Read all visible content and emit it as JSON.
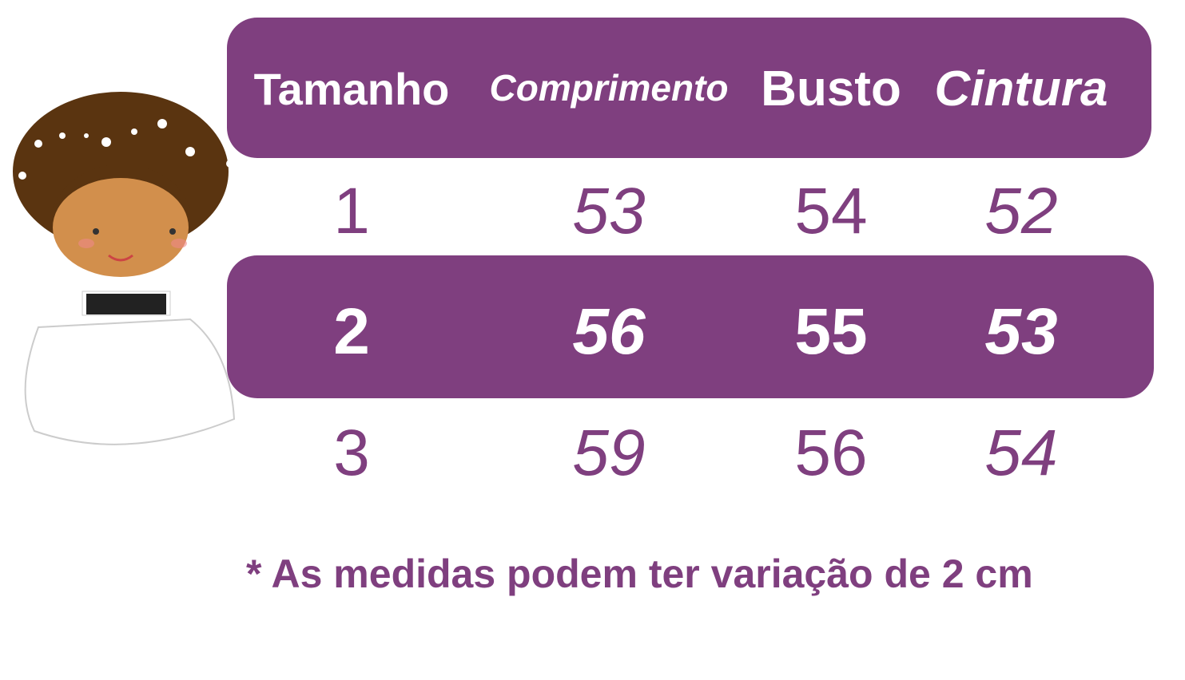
{
  "colors": {
    "accent": "#7f3f7f",
    "text_on_accent": "#ffffff"
  },
  "header": {
    "columns": [
      "Tamanho",
      "Comprimento",
      "Busto",
      "Cintura"
    ]
  },
  "rows": [
    {
      "tamanho": "1",
      "comprimento": "53",
      "busto": "54",
      "cintura": "52",
      "highlighted": false
    },
    {
      "tamanho": "2",
      "comprimento": "56",
      "busto": "55",
      "cintura": "53",
      "highlighted": true
    },
    {
      "tamanho": "3",
      "comprimento": "59",
      "busto": "56",
      "cintura": "54",
      "highlighted": false
    }
  ],
  "footnote": "* As medidas podem ter variação de 2 cm",
  "illustration": "girl-in-white-dress-icon"
}
